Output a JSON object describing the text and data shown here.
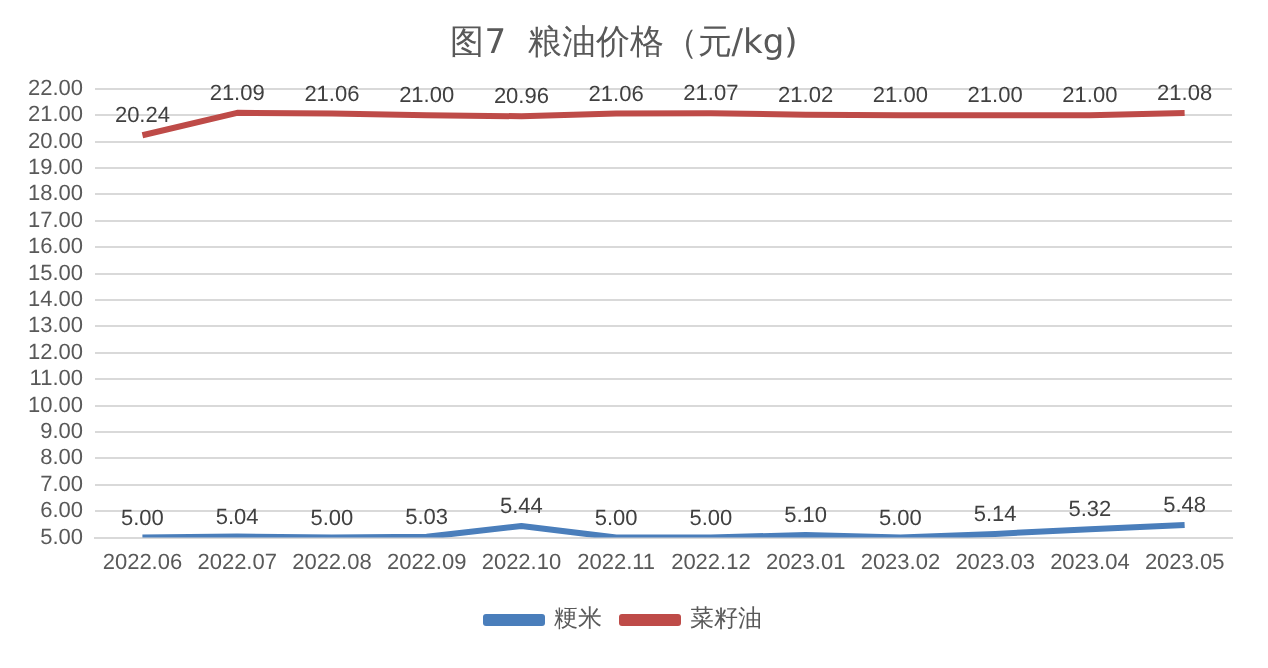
{
  "chart_data": {
    "type": "line",
    "title": "图7  粮油价格（元/kg)",
    "categories": [
      "2022.06",
      "2022.07",
      "2022.08",
      "2022.09",
      "2022.10",
      "2022.11",
      "2022.12",
      "2023.01",
      "2023.02",
      "2023.03",
      "2023.04",
      "2023.05"
    ],
    "series": [
      {
        "name": "粳米",
        "color": "#4a7ebb",
        "values": [
          5.0,
          5.04,
          5.0,
          5.03,
          5.44,
          5.0,
          5.0,
          5.1,
          5.0,
          5.14,
          5.32,
          5.48
        ],
        "value_labels": [
          "5.00",
          "5.04",
          "5.00",
          "5.03",
          "5.44",
          "5.00",
          "5.00",
          "5.10",
          "5.00",
          "5.14",
          "5.32",
          "5.48"
        ]
      },
      {
        "name": "菜籽油",
        "color": "#be4b48",
        "values": [
          20.24,
          21.09,
          21.06,
          21.0,
          20.96,
          21.06,
          21.07,
          21.02,
          21.0,
          21.0,
          21.0,
          21.08
        ],
        "value_labels": [
          "20.24",
          "21.09",
          "21.06",
          "21.00",
          "20.96",
          "21.06",
          "21.07",
          "21.02",
          "21.00",
          "21.00",
          "21.00",
          "21.08"
        ]
      }
    ],
    "ylim": [
      5,
      22
    ],
    "yticks": [
      {
        "value": 5,
        "label": "5.00"
      },
      {
        "value": 6,
        "label": "6.00"
      },
      {
        "value": 7,
        "label": "7.00"
      },
      {
        "value": 8,
        "label": "8.00"
      },
      {
        "value": 9,
        "label": "9.00"
      },
      {
        "value": 10,
        "label": "10.00"
      },
      {
        "value": 11,
        "label": "11.00"
      },
      {
        "value": 12,
        "label": "12.00"
      },
      {
        "value": 13,
        "label": "13.00"
      },
      {
        "value": 14,
        "label": "14.00"
      },
      {
        "value": 15,
        "label": "15.00"
      },
      {
        "value": 16,
        "label": "16.00"
      },
      {
        "value": 17,
        "label": "17.00"
      },
      {
        "value": 18,
        "label": "18.00"
      },
      {
        "value": 19,
        "label": "19.00"
      },
      {
        "value": 20,
        "label": "20.00"
      },
      {
        "value": 21,
        "label": "21.00"
      },
      {
        "value": 22,
        "label": "22.00"
      }
    ],
    "grid": "y",
    "legend": "bottom",
    "marker": "none",
    "line_style": "solid"
  }
}
